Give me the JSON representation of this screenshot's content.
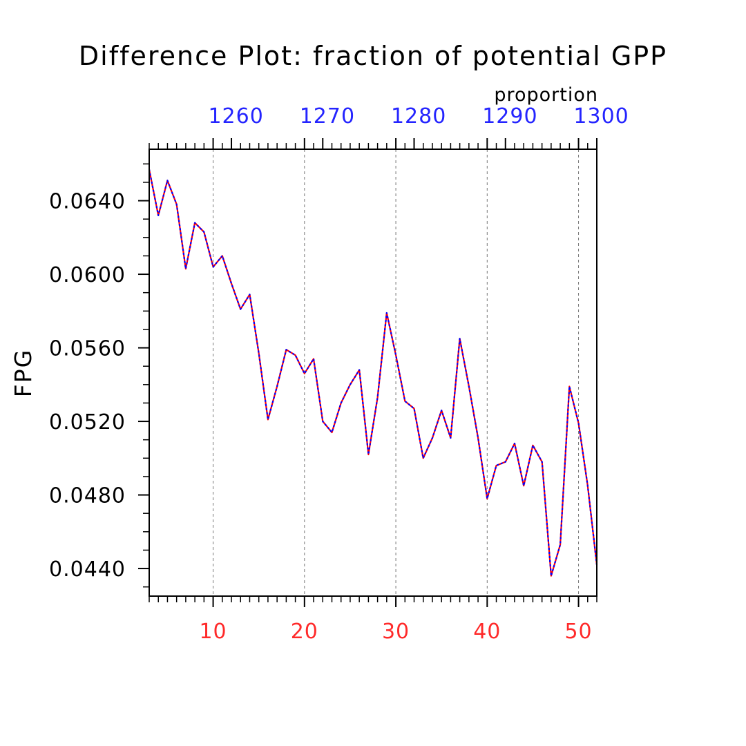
{
  "chart_data": {
    "type": "line",
    "title": "Difference Plot: fraction of potential GPP",
    "units": "proportion",
    "ylabel": "FPG",
    "xlabel": "",
    "grid": "vertical dashed",
    "ylim": [
      0.0425,
      0.0668
    ],
    "xlim": [
      3,
      52
    ],
    "yticks": [
      0.044,
      0.048,
      0.052,
      0.056,
      0.06,
      0.064
    ],
    "ytick_labels": [
      "0.0440",
      "0.0480",
      "0.0520",
      "0.0560",
      "0.0600",
      "0.0640"
    ],
    "xticks_bottom": [
      10,
      20,
      30,
      40,
      50
    ],
    "xtick_labels_bottom": [
      "10",
      "20",
      "30",
      "40",
      "50"
    ],
    "xtick_labels_top": [
      "1260",
      "1270",
      "1280",
      "1290",
      "1300"
    ],
    "colors": {
      "bottom_axis": "#ff2a2a",
      "top_axis": "#2424ff",
      "line_red": "#ff0000",
      "line_blue": "#0000ff"
    },
    "x": [
      3,
      4,
      5,
      6,
      7,
      8,
      9,
      10,
      11,
      12,
      13,
      14,
      15,
      16,
      17,
      18,
      19,
      20,
      21,
      22,
      23,
      24,
      25,
      26,
      27,
      28,
      29,
      30,
      31,
      32,
      33,
      34,
      35,
      36,
      37,
      38,
      39,
      40,
      41,
      42,
      43,
      44,
      45,
      46,
      47,
      48,
      49,
      50,
      51,
      52
    ],
    "series": [
      {
        "values": [
          0.0657,
          0.0632,
          0.0651,
          0.0638,
          0.0603,
          0.0628,
          0.0623,
          0.0604,
          0.061,
          0.0595,
          0.0581,
          0.0589,
          0.0557,
          0.0521,
          0.0539,
          0.0559,
          0.0556,
          0.0546,
          0.0554,
          0.052,
          0.0514,
          0.053,
          0.054,
          0.0548,
          0.0502,
          0.0533,
          0.0579,
          0.0556,
          0.0531,
          0.0527,
          0.05,
          0.0511,
          0.0526,
          0.0511,
          0.0565,
          0.0539,
          0.0511,
          0.0478,
          0.0496,
          0.0498,
          0.0508,
          0.0485,
          0.0507,
          0.0498,
          0.0436,
          0.0453,
          0.0539,
          0.0519,
          0.0485,
          0.0442
        ]
      },
      {
        "values": [
          0.0657,
          0.0632,
          0.0651,
          0.0638,
          0.0603,
          0.0628,
          0.0623,
          0.0604,
          0.061,
          0.0595,
          0.0581,
          0.0589,
          0.0557,
          0.0521,
          0.0539,
          0.0559,
          0.0556,
          0.0546,
          0.0554,
          0.052,
          0.0514,
          0.053,
          0.054,
          0.0548,
          0.0502,
          0.0533,
          0.0579,
          0.0556,
          0.0531,
          0.0527,
          0.05,
          0.0511,
          0.0526,
          0.0511,
          0.0565,
          0.0539,
          0.0511,
          0.0478,
          0.0496,
          0.0498,
          0.0508,
          0.0485,
          0.0507,
          0.0498,
          0.0436,
          0.0453,
          0.0539,
          0.0519,
          0.0485,
          0.0442
        ]
      }
    ]
  }
}
